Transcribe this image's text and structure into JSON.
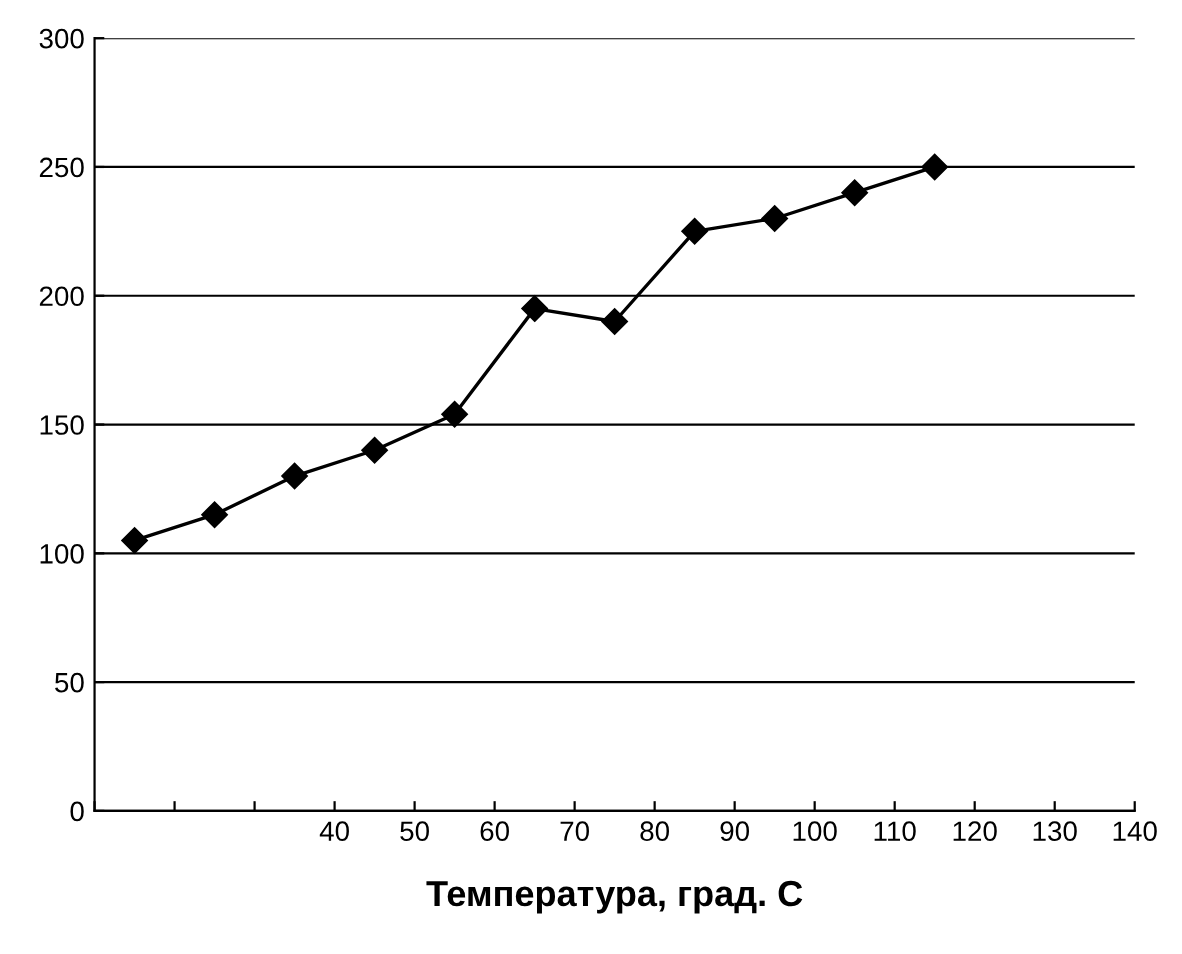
{
  "chart_data": {
    "type": "line",
    "xlabel": "Температура, град. С",
    "x": [
      15,
      25,
      35,
      45,
      55,
      65,
      75,
      85,
      95,
      105,
      115
    ],
    "series": [
      {
        "color": "#000000",
        "values": [
          105,
          115,
          130,
          140,
          154,
          195,
          190,
          225,
          230,
          240,
          250
        ]
      }
    ],
    "xlim": [
      10,
      140
    ],
    "xticks": [
      {
        "value": 10,
        "label": null
      },
      {
        "value": 20,
        "label": null
      },
      {
        "value": 30,
        "label": null
      },
      40,
      50,
      60,
      70,
      80,
      90,
      100,
      110,
      120,
      130,
      140
    ],
    "ylim": [
      0,
      300
    ],
    "yticks": [
      0,
      50,
      100,
      150,
      200,
      250,
      300
    ],
    "grid": "y",
    "marker": "diamond",
    "line_style": "solid"
  }
}
